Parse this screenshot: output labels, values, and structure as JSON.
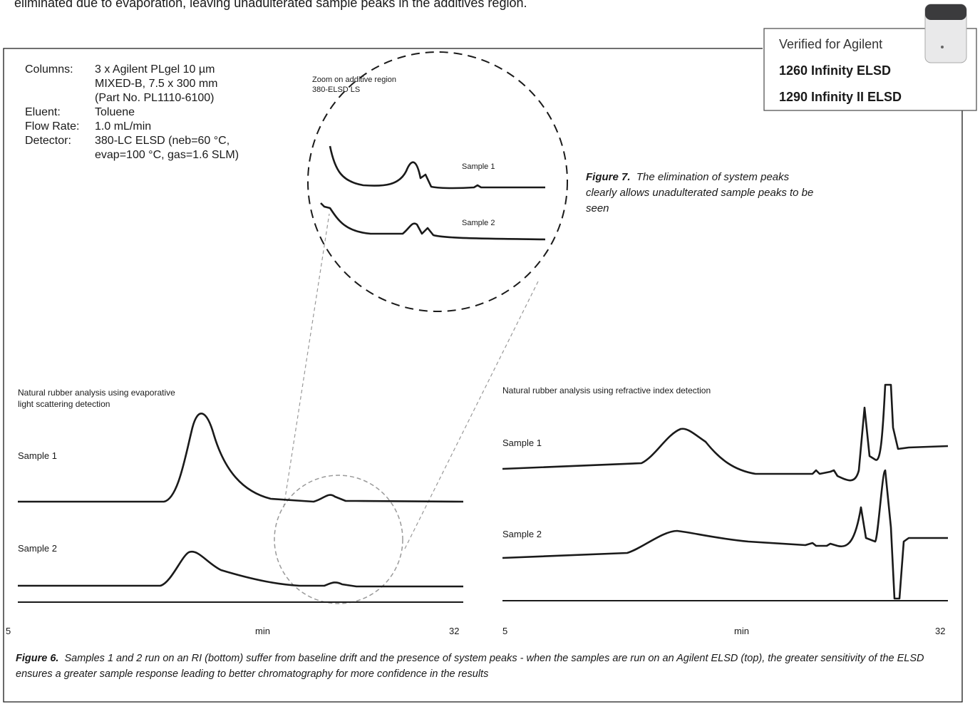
{
  "intro": "eliminated due to evaporation, leaving unadulterated sample peaks in the additives region.",
  "badge": {
    "lines": [
      "Verified for Agilent",
      "1260 Infinity ELSD",
      "1290 Infinity II ELSD"
    ]
  },
  "conditions": {
    "rows": [
      {
        "label": "Columns:",
        "lines": [
          "3 x Agilent PLgel 10 µm",
          "MIXED-B, 7.5 x 300 mm",
          "(Part No. PL1110-6100)"
        ]
      },
      {
        "label": "Eluent:",
        "lines": [
          "Toluene"
        ]
      },
      {
        "label": "Flow Rate:",
        "lines": [
          "1.0 mL/min"
        ]
      },
      {
        "label": "Detector:",
        "lines": [
          "380-LC ELSD (neb=60 °C,",
          "evap=100 °C, gas=1.6 SLM)"
        ]
      }
    ]
  },
  "zoom": {
    "title_lines": [
      "Zoom on additive region",
      "380-ELSD LS"
    ],
    "sample_labels": [
      "Sample 1",
      "Sample 2"
    ]
  },
  "figure7": {
    "label": "Figure 7.",
    "caption": "The elimination of system peaks clearly allows unadulterated sample peaks to be seen"
  },
  "elsd_panel": {
    "title_lines": [
      "Natural rubber analysis using evaporative",
      "light scattering detection"
    ],
    "sample_labels": [
      "Sample 1",
      "Sample 2"
    ],
    "x_start": 5,
    "x_unit": "min",
    "x_end": 32
  },
  "ri_panel": {
    "title": "Natural rubber analysis using refractive index detection",
    "sample_labels": [
      "Sample 1",
      "Sample 2"
    ],
    "x_start": 5,
    "x_unit": "min",
    "x_end": 32
  },
  "figure6": {
    "label": "Figure 6.",
    "caption": "Samples 1 and 2 run on an RI (bottom) suffer from baseline drift and the presence of system peaks - when the samples are run on an Agilent ELSD (top), the greater sensitivity of the ELSD ensures a greater sample response leading to better chromatography for more confidence in the results"
  }
}
